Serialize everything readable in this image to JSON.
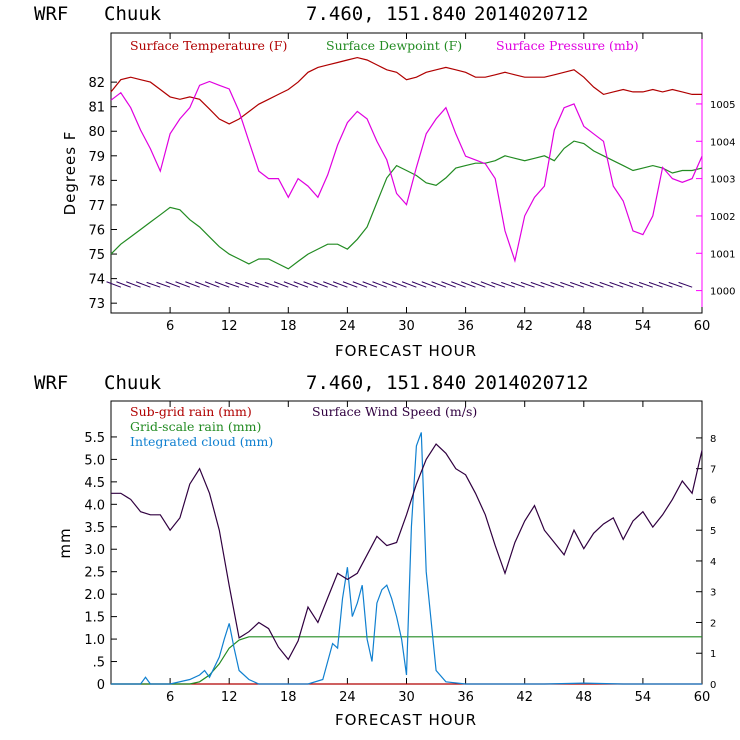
{
  "chart_data": [
    {
      "type": "line",
      "header": {
        "model": "WRF",
        "location": "Chuuk",
        "coords": "7.460, 151.840",
        "init": "2014020712"
      },
      "xlabel": "FORECAST HOUR",
      "ylabel": "Degrees F",
      "xlim": [
        0,
        60
      ],
      "ylim": [
        72.6,
        84.0
      ],
      "x_ticks": [
        6,
        12,
        18,
        24,
        30,
        36,
        42,
        48,
        54,
        60
      ],
      "y_ticks": [
        73,
        74,
        75,
        76,
        77,
        78,
        79,
        80,
        81,
        82
      ],
      "y2_ticks": [
        1000,
        1001,
        1002,
        1003,
        1004,
        1005
      ],
      "y2lim": [
        999.4,
        1006.9
      ],
      "grid": false,
      "legend_position": "top",
      "series": [
        {
          "name": "Surface Temperature (F)",
          "color": "#b00000",
          "axis": "left",
          "x": [
            0,
            1,
            2,
            3,
            4,
            5,
            6,
            7,
            8,
            9,
            10,
            11,
            12,
            13,
            14,
            15,
            16,
            17,
            18,
            19,
            20,
            21,
            22,
            23,
            24,
            25,
            26,
            27,
            28,
            29,
            30,
            31,
            32,
            33,
            34,
            35,
            36,
            37,
            38,
            39,
            40,
            41,
            42,
            43,
            44,
            45,
            46,
            47,
            48,
            49,
            50,
            51,
            52,
            53,
            54,
            55,
            56,
            57,
            58,
            59,
            60
          ],
          "values": [
            81.6,
            82.1,
            82.2,
            82.1,
            82.0,
            81.7,
            81.4,
            81.3,
            81.4,
            81.3,
            80.9,
            80.5,
            80.3,
            80.5,
            80.8,
            81.1,
            81.3,
            81.5,
            81.7,
            82.0,
            82.4,
            82.6,
            82.7,
            82.8,
            82.9,
            83.0,
            82.9,
            82.7,
            82.5,
            82.4,
            82.1,
            82.2,
            82.4,
            82.5,
            82.6,
            82.5,
            82.4,
            82.2,
            82.2,
            82.3,
            82.4,
            82.3,
            82.2,
            82.2,
            82.2,
            82.3,
            82.4,
            82.5,
            82.2,
            81.8,
            81.5,
            81.6,
            81.7,
            81.6,
            81.6,
            81.7,
            81.6,
            81.7,
            81.6,
            81.5,
            81.5
          ]
        },
        {
          "name": "Surface Dewpoint (F)",
          "color": "#228b22",
          "axis": "left",
          "x": [
            0,
            1,
            2,
            3,
            4,
            5,
            6,
            7,
            8,
            9,
            10,
            11,
            12,
            13,
            14,
            15,
            16,
            17,
            18,
            19,
            20,
            21,
            22,
            23,
            24,
            25,
            26,
            27,
            28,
            29,
            30,
            31,
            32,
            33,
            34,
            35,
            36,
            37,
            38,
            39,
            40,
            41,
            42,
            43,
            44,
            45,
            46,
            47,
            48,
            49,
            50,
            51,
            52,
            53,
            54,
            55,
            56,
            57,
            58,
            59,
            60
          ],
          "values": [
            75.0,
            75.4,
            75.7,
            76.0,
            76.3,
            76.6,
            76.9,
            76.8,
            76.4,
            76.1,
            75.7,
            75.3,
            75.0,
            74.8,
            74.6,
            74.8,
            74.8,
            74.6,
            74.4,
            74.7,
            75.0,
            75.2,
            75.4,
            75.4,
            75.2,
            75.6,
            76.1,
            77.1,
            78.1,
            78.6,
            78.4,
            78.2,
            77.9,
            77.8,
            78.1,
            78.5,
            78.6,
            78.7,
            78.7,
            78.8,
            79.0,
            78.9,
            78.8,
            78.9,
            79.0,
            78.8,
            79.3,
            79.6,
            79.5,
            79.2,
            79.0,
            78.8,
            78.6,
            78.4,
            78.5,
            78.6,
            78.5,
            78.3,
            78.4,
            78.4,
            78.5
          ]
        },
        {
          "name": "Surface Pressure (mb)",
          "color": "#e000e0",
          "axis": "right",
          "x": [
            0,
            1,
            2,
            3,
            4,
            5,
            6,
            7,
            8,
            9,
            10,
            11,
            12,
            13,
            14,
            15,
            16,
            17,
            18,
            19,
            20,
            21,
            22,
            23,
            24,
            25,
            26,
            27,
            28,
            29,
            30,
            31,
            32,
            33,
            34,
            35,
            36,
            37,
            38,
            39,
            40,
            41,
            42,
            43,
            44,
            45,
            46,
            47,
            48,
            49,
            50,
            51,
            52,
            53,
            54,
            55,
            56,
            57,
            58,
            59,
            60
          ],
          "values": [
            1005.1,
            1005.3,
            1004.9,
            1004.3,
            1003.8,
            1003.2,
            1004.2,
            1004.6,
            1004.9,
            1005.5,
            1005.6,
            1005.5,
            1005.4,
            1004.8,
            1004.0,
            1003.2,
            1003.0,
            1003.0,
            1002.5,
            1003.0,
            1002.8,
            1002.5,
            1003.1,
            1003.9,
            1004.5,
            1004.8,
            1004.6,
            1004.0,
            1003.5,
            1002.6,
            1002.3,
            1003.3,
            1004.2,
            1004.6,
            1004.9,
            1004.2,
            1003.6,
            1003.5,
            1003.4,
            1003.0,
            1001.6,
            1000.8,
            1002.0,
            1002.5,
            1002.8,
            1004.3,
            1004.9,
            1005.0,
            1004.4,
            1004.2,
            1004.0,
            1002.8,
            1002.4,
            1001.6,
            1001.5,
            1002.0,
            1003.3,
            1003.0,
            1002.9,
            1003.0,
            1003.6
          ]
        },
        {
          "name": "Wind barbs",
          "color": "#300060",
          "axis": "barbs",
          "x": [
            1,
            2,
            3,
            4,
            5,
            6,
            7,
            8,
            9,
            10,
            11,
            12,
            13,
            14,
            15,
            16,
            17,
            18,
            19,
            20,
            21,
            22,
            23,
            24,
            25,
            26,
            27,
            28,
            29,
            30,
            31,
            32,
            33,
            34,
            35,
            36,
            37,
            38,
            39,
            40,
            41,
            42,
            43,
            44,
            45,
            46,
            47,
            48,
            49,
            50,
            51,
            52,
            53,
            54,
            55,
            56,
            57,
            58,
            59
          ],
          "values": [
            150,
            150,
            150,
            150,
            140,
            140,
            150,
            150,
            150,
            150,
            150,
            150,
            140,
            140,
            140,
            140,
            140,
            150,
            150,
            150,
            150,
            150,
            150,
            150,
            150,
            150,
            150,
            150,
            150,
            150,
            150,
            150,
            150,
            150,
            150,
            150,
            150,
            150,
            150,
            140,
            140,
            140,
            140,
            140,
            140,
            140,
            140,
            140,
            140,
            140,
            140,
            140,
            140,
            140,
            140,
            140,
            140,
            140,
            140
          ]
        }
      ]
    },
    {
      "type": "line",
      "header": {
        "model": "WRF",
        "location": "Chuuk",
        "coords": "7.460, 151.840",
        "init": "2014020712"
      },
      "xlabel": "FORECAST HOUR",
      "ylabel": "mm",
      "xlim": [
        0,
        60
      ],
      "ylim": [
        0,
        6.3
      ],
      "x_ticks": [
        6,
        12,
        18,
        24,
        30,
        36,
        42,
        48,
        54,
        60
      ],
      "y_ticks": [
        0,
        0.5,
        1.0,
        1.5,
        2.0,
        2.5,
        3.0,
        3.5,
        4.0,
        4.5,
        5.0,
        5.5
      ],
      "y_tick_labels": [
        "0",
        ".5",
        "1.0",
        "1.5",
        "2.0",
        "2.5",
        "3.0",
        "3.5",
        "4.0",
        "4.5",
        "5.0",
        "5.5"
      ],
      "y2_ticks": [
        0,
        1,
        2,
        3,
        4,
        5,
        6,
        7,
        8
      ],
      "y2lim": [
        0,
        9.2
      ],
      "grid": false,
      "legend_position": "top",
      "series": [
        {
          "name": "Sub-grid rain (mm)",
          "color": "#b00000",
          "axis": "left",
          "x": [
            0,
            60
          ],
          "values": [
            0,
            0
          ]
        },
        {
          "name": "Grid-scale rain (mm)",
          "color": "#228b22",
          "axis": "left",
          "x": [
            0,
            8,
            9,
            10,
            11,
            12,
            13,
            14,
            60
          ],
          "values": [
            0,
            0,
            0.05,
            0.2,
            0.45,
            0.8,
            0.98,
            1.05,
            1.05
          ]
        },
        {
          "name": "Integrated cloud (mm)",
          "color": "#1080d0",
          "axis": "left",
          "x": [
            0,
            3,
            3.5,
            4,
            6,
            8,
            9,
            9.5,
            10,
            11,
            11.5,
            12,
            12.5,
            13,
            14,
            15,
            20,
            21.5,
            22,
            22.5,
            23,
            23.5,
            24,
            24.5,
            25,
            25.5,
            26,
            26.5,
            27,
            27.5,
            28,
            28.5,
            29,
            29.5,
            30,
            30.5,
            31,
            31.5,
            32,
            33,
            34,
            36,
            40,
            44,
            48,
            52,
            56,
            60
          ],
          "values": [
            0,
            0,
            0.15,
            0,
            0,
            0.1,
            0.2,
            0.3,
            0.15,
            0.6,
            1.0,
            1.35,
            0.8,
            0.3,
            0.1,
            0,
            0,
            0.1,
            0.5,
            0.9,
            0.8,
            1.9,
            2.6,
            1.5,
            1.8,
            2.2,
            1.0,
            0.5,
            1.8,
            2.1,
            2.2,
            1.9,
            1.5,
            1.0,
            0.2,
            3.5,
            5.3,
            5.6,
            2.5,
            0.3,
            0.05,
            0,
            0,
            0,
            0.02,
            0,
            0,
            0
          ]
        },
        {
          "name": "Surface Wind Speed (m/s)",
          "color": "#300040",
          "axis": "right",
          "x": [
            0,
            1,
            2,
            3,
            4,
            5,
            6,
            7,
            8,
            9,
            10,
            11,
            12,
            13,
            14,
            15,
            16,
            17,
            18,
            19,
            20,
            21,
            22,
            23,
            24,
            25,
            26,
            27,
            28,
            29,
            30,
            31,
            32,
            33,
            34,
            35,
            36,
            37,
            38,
            39,
            40,
            41,
            42,
            43,
            44,
            45,
            46,
            47,
            48,
            49,
            50,
            51,
            52,
            53,
            54,
            55,
            56,
            57,
            58,
            59,
            60
          ],
          "values": [
            6.2,
            6.2,
            6.0,
            5.6,
            5.5,
            5.5,
            5.0,
            5.4,
            6.5,
            7.0,
            6.2,
            5.0,
            3.2,
            1.5,
            1.7,
            2.0,
            1.8,
            1.2,
            0.8,
            1.4,
            2.5,
            2.0,
            2.8,
            3.6,
            3.4,
            3.6,
            4.2,
            4.8,
            4.5,
            4.6,
            5.5,
            6.5,
            7.3,
            7.8,
            7.5,
            7.0,
            6.8,
            6.2,
            5.5,
            4.5,
            3.6,
            4.6,
            5.3,
            5.8,
            5.0,
            4.6,
            4.2,
            5.0,
            4.4,
            4.9,
            5.2,
            5.4,
            4.7,
            5.3,
            5.6,
            5.1,
            5.5,
            6.0,
            6.6,
            6.2,
            7.6
          ]
        }
      ]
    }
  ]
}
